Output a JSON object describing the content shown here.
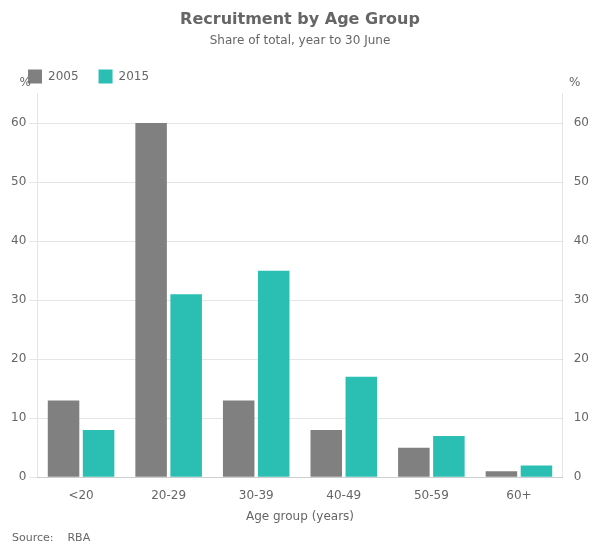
{
  "chart_data": {
    "type": "bar",
    "title": "Recruitment by Age Group",
    "subtitle": "Share of total, year to 30 June",
    "categories": [
      "<20",
      "20-29",
      "30-39",
      "40-49",
      "50-59",
      "60+"
    ],
    "series": [
      {
        "name": "2005",
        "color": "#808080",
        "values": [
          13,
          60,
          13,
          8,
          5,
          1
        ]
      },
      {
        "name": "2015",
        "color": "#2bbfb3",
        "values": [
          8,
          31,
          35,
          17,
          7,
          2
        ]
      }
    ],
    "xlabel": "Age group (years)",
    "ylabel": "%",
    "y2label": "%",
    "ylim": [
      0,
      65
    ],
    "yticks": [
      0,
      10,
      20,
      30,
      40,
      50,
      60
    ],
    "y2lim": [
      0,
      65
    ],
    "y2ticks": [
      0,
      10,
      20,
      30,
      40,
      50,
      60
    ],
    "grid": true,
    "legend": "upper left",
    "annotations": [
      "Source:    RBA"
    ]
  }
}
